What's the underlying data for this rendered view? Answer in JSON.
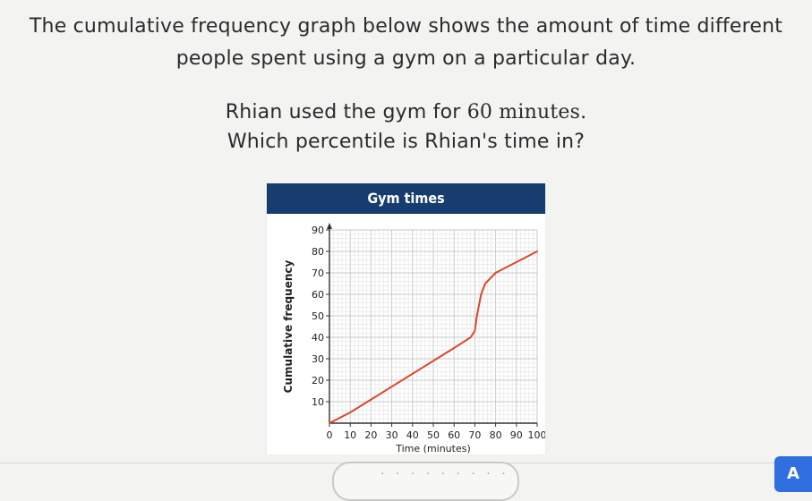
{
  "question": {
    "line1": "The cumulative frequency graph below shows the amount of time different",
    "line2": "people spent using a gym on a particular day.",
    "line3_prefix": "Rhian used the gym for ",
    "line3_minutes": "60 minutes.",
    "line4": "Which percentile is Rhian's time in?"
  },
  "chart_data": {
    "type": "line",
    "title": "Gym times",
    "xlabel": "Time (minutes)",
    "ylabel": "Cumulative frequency",
    "xlim": [
      0,
      100
    ],
    "ylim": [
      0,
      90
    ],
    "x_ticks": [
      0,
      10,
      20,
      30,
      40,
      50,
      60,
      70,
      80,
      90,
      100
    ],
    "y_ticks": [
      10,
      20,
      30,
      40,
      50,
      60,
      70,
      80,
      90
    ],
    "grid": true,
    "series": [
      {
        "color": "#d9482b",
        "points": [
          [
            0,
            0
          ],
          [
            10,
            5
          ],
          [
            20,
            11
          ],
          [
            30,
            17
          ],
          [
            40,
            23
          ],
          [
            50,
            29
          ],
          [
            60,
            35
          ],
          [
            68,
            40
          ],
          [
            70,
            43
          ],
          [
            71,
            50
          ],
          [
            73,
            60
          ],
          [
            75,
            65
          ],
          [
            80,
            70
          ],
          [
            90,
            75
          ],
          [
            100,
            80
          ]
        ]
      }
    ]
  },
  "answer": {
    "placeholder_dots": "· · · · · · · · ·"
  },
  "side_button": {
    "label": "A"
  }
}
